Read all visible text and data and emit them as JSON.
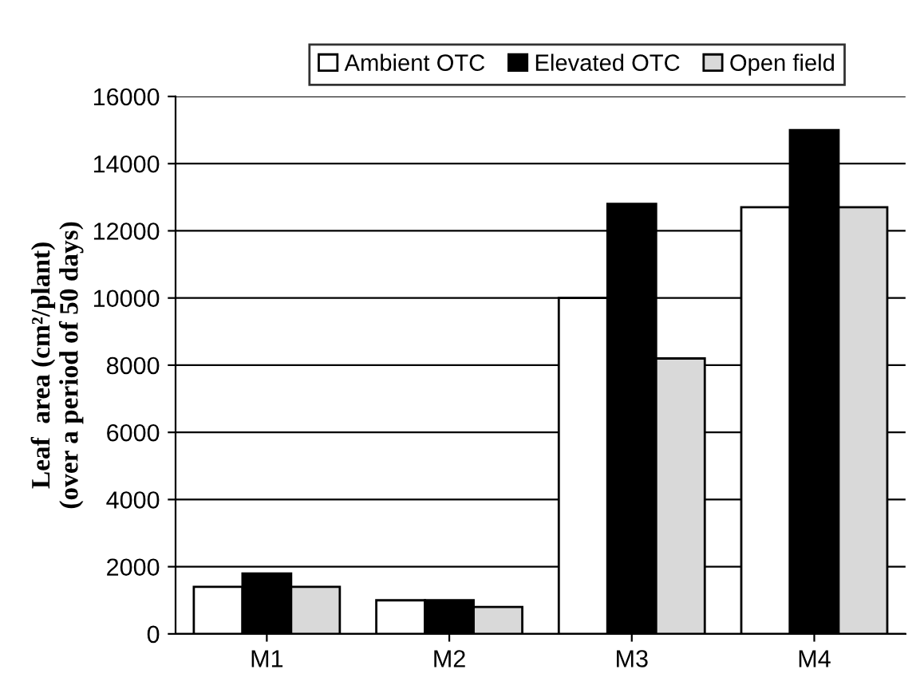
{
  "chart_data": {
    "type": "bar",
    "ylabel": "Leaf  area (cm²/plant)\n(over a period of 50 days)",
    "categories": [
      "M1",
      "M2",
      "M3",
      "M4"
    ],
    "series": [
      {
        "name": "Ambient OTC",
        "color": "#ffffff",
        "values": [
          1400,
          1000,
          10000,
          12700
        ]
      },
      {
        "name": "Elevated OTC",
        "color": "#000000",
        "values": [
          1800,
          1000,
          12800,
          15000
        ]
      },
      {
        "name": "Open field",
        "color": "#d9d9d9",
        "values": [
          1400,
          800,
          8200,
          12700
        ]
      }
    ],
    "ylim": [
      0,
      16000
    ],
    "yticks": [
      0,
      2000,
      4000,
      6000,
      8000,
      10000,
      12000,
      14000,
      16000
    ],
    "grid": "y",
    "legend": "top"
  }
}
